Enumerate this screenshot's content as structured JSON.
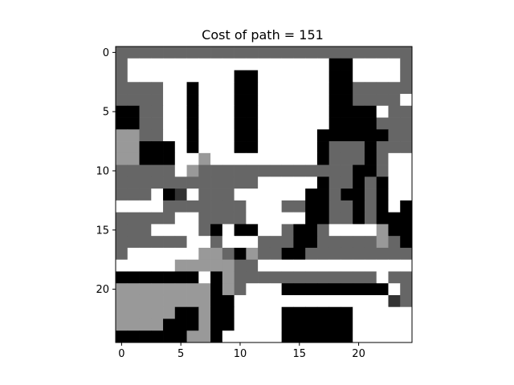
{
  "chart_data": {
    "type": "heatmap",
    "title": "Cost of path = 151",
    "xlabel": "",
    "ylabel": "",
    "x_ticks": [
      0,
      5,
      10,
      15,
      20
    ],
    "y_ticks": [
      0,
      5,
      10,
      15,
      20
    ],
    "xlim": [
      -0.5,
      24.5
    ],
    "ylim": [
      24.5,
      -0.5
    ],
    "colormap": "gray",
    "colormap_note": "0 = black (wall), 1 = dark gray (path), 2 = light gray, 3 = white, 4 = very dark gray",
    "grid": [
      "1111111111111111111111111",
      "1333333333333333330033331",
      "1333333333003333330033331",
      "1111330333003333330011111",
      "1111330333003333330011113",
      "0011330333003333330000311",
      "0011330333003333330000111",
      "2211330333003333300000011",
      "2200030333003333301110111",
      "2200033233333333301110133",
      "1111132111111111111100133",
      "1111111111113333301101033",
      "1113043111333333001001033",
      "3333111111133311001101030",
      "1111133111133333001101000",
      "1113333103003310013333200",
      "1111113313331110011111210",
      "1333333221021100111111111",
      "3333322222113333333333333",
      "0000000302111111111111311",
      "2222222202133300000000031",
      "2222222200333333333333341",
      "2222200200333300000033333",
      "2222000200333300000033333",
      "0000002203333300000033333"
    ]
  }
}
